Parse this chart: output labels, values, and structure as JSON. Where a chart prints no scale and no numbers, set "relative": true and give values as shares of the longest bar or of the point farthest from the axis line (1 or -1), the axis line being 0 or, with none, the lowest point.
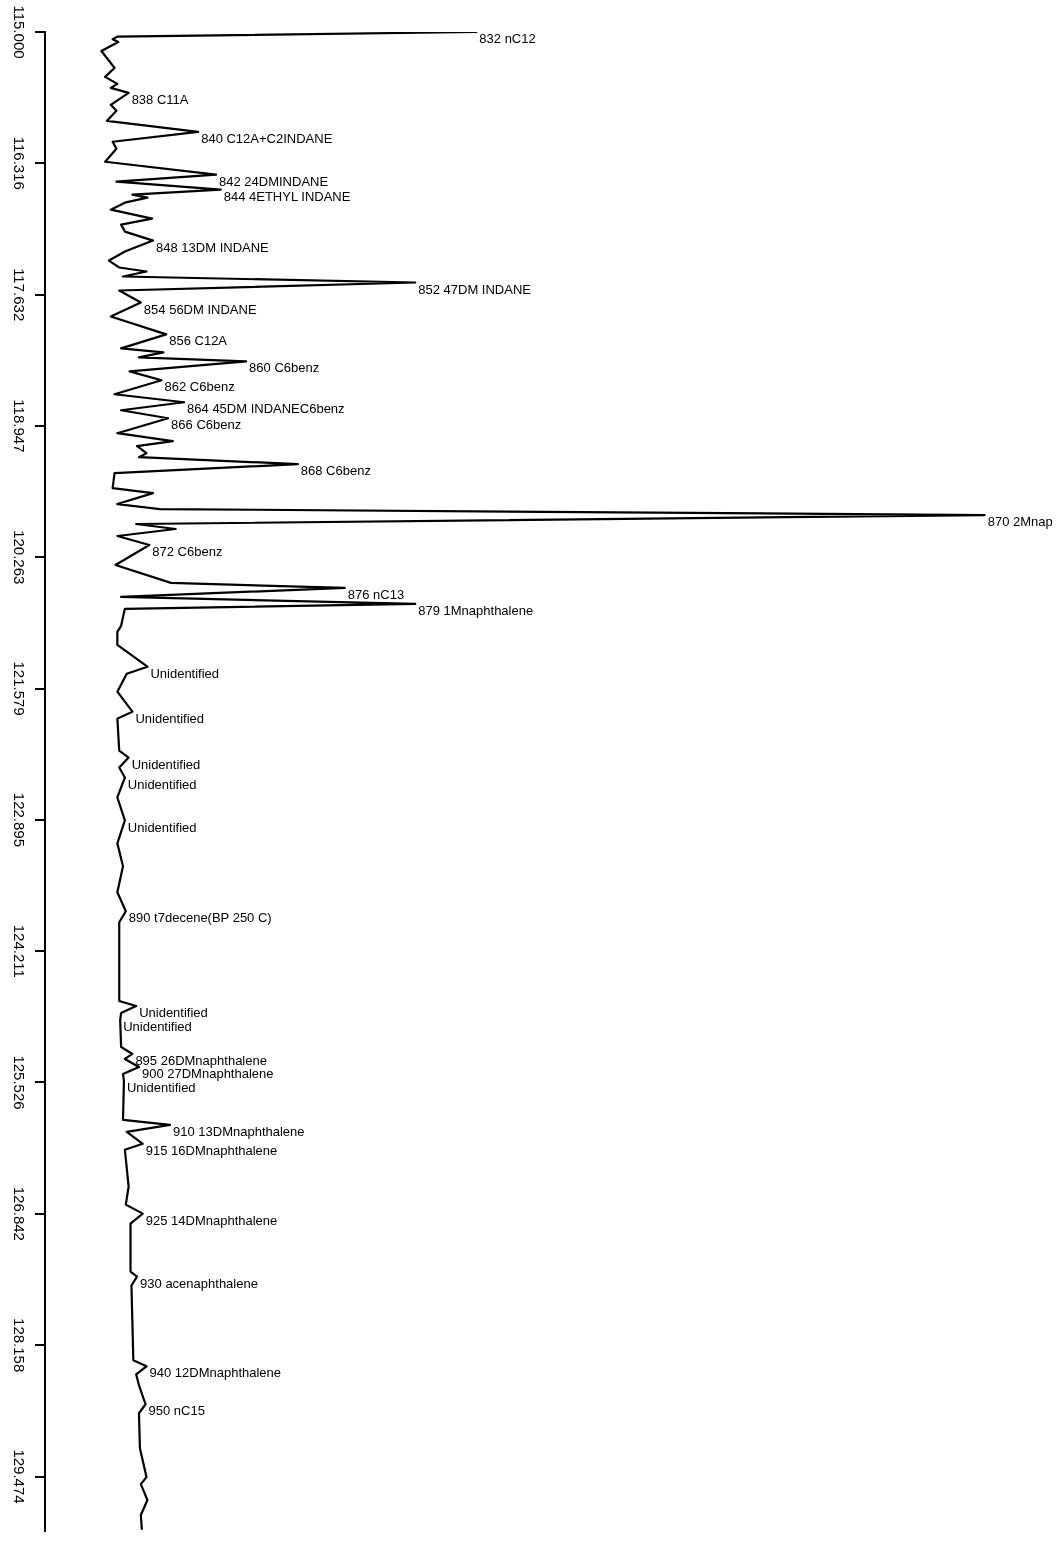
{
  "chart_data": {
    "type": "line",
    "orientation": "horizontal",
    "relative": true,
    "marker": "none",
    "color": "#000000",
    "x": [
      115.0,
      115.046,
      115.073,
      115.1,
      115.19,
      115.36,
      115.45,
      115.52,
      115.56,
      115.61,
      115.73,
      115.79,
      115.89,
      116.0,
      116.1,
      116.17,
      116.3,
      116.43,
      116.5,
      116.58,
      116.63,
      116.66,
      116.71,
      116.78,
      116.87,
      116.93,
      117.0,
      117.09,
      117.2,
      117.29,
      117.36,
      117.4,
      117.45,
      117.51,
      117.59,
      117.71,
      117.85,
      118.03,
      118.17,
      118.21,
      118.26,
      118.3,
      118.4,
      118.49,
      118.63,
      118.71,
      118.79,
      118.87,
      119.02,
      119.1,
      119.15,
      119.22,
      119.26,
      119.33,
      119.42,
      119.57,
      119.62,
      119.73,
      119.78,
      119.84,
      119.93,
      119.98,
      120.05,
      120.14,
      120.34,
      120.52,
      120.57,
      120.66,
      120.73,
      120.78,
      120.95,
      121.01,
      121.14,
      121.36,
      121.43,
      121.61,
      121.81,
      121.88,
      122.2,
      122.27,
      122.37,
      122.47,
      122.67,
      122.9,
      123.13,
      123.36,
      123.62,
      123.81,
      123.92,
      124.71,
      124.76,
      124.83,
      124.9,
      125.17,
      125.24,
      125.29,
      125.37,
      125.44,
      125.51,
      125.9,
      125.95,
      126.02,
      126.14,
      126.2,
      126.57,
      126.75,
      126.84,
      126.94,
      127.42,
      127.47,
      127.56,
      128.31,
      128.37,
      128.45,
      128.56,
      128.75,
      128.84,
      129.19,
      129.48,
      129.55,
      129.71,
      129.86,
      130.0
    ],
    "values": [
      0.459,
      0.077,
      0.072,
      0.078,
      0.06,
      0.074,
      0.064,
      0.077,
      0.07,
      0.089,
      0.07,
      0.076,
      0.066,
      0.163,
      0.072,
      0.076,
      0.064,
      0.182,
      0.076,
      0.187,
      0.093,
      0.109,
      0.085,
      0.07,
      0.114,
      0.081,
      0.085,
      0.115,
      0.085,
      0.068,
      0.079,
      0.108,
      0.083,
      0.394,
      0.079,
      0.102,
      0.07,
      0.129,
      0.081,
      0.126,
      0.1,
      0.214,
      0.09,
      0.124,
      0.074,
      0.148,
      0.081,
      0.131,
      0.077,
      0.136,
      0.098,
      0.108,
      0.1,
      0.269,
      0.074,
      0.072,
      0.115,
      0.077,
      0.122,
      1.0,
      0.097,
      0.139,
      0.077,
      0.111,
      0.075,
      0.134,
      0.319,
      0.081,
      0.394,
      0.085,
      0.081,
      0.077,
      0.077,
      0.109,
      0.087,
      0.077,
      0.093,
      0.077,
      0.079,
      0.089,
      0.079,
      0.085,
      0.077,
      0.085,
      0.077,
      0.083,
      0.077,
      0.086,
      0.079,
      0.079,
      0.097,
      0.081,
      0.08,
      0.081,
      0.093,
      0.085,
      0.1,
      0.083,
      0.084,
      0.083,
      0.133,
      0.087,
      0.104,
      0.085,
      0.089,
      0.086,
      0.104,
      0.091,
      0.091,
      0.098,
      0.092,
      0.094,
      0.108,
      0.097,
      0.1,
      0.107,
      0.1,
      0.101,
      0.108,
      0.102,
      0.109,
      0.102,
      0.103
    ],
    "ylim": [
      130.02,
      115.0
    ],
    "yticks": [
      {
        "value": 115.0,
        "label": "115.000"
      },
      {
        "value": 116.316,
        "label": "116.316"
      },
      {
        "value": 117.632,
        "label": "117.632"
      },
      {
        "value": 118.947,
        "label": "118.947"
      },
      {
        "value": 120.263,
        "label": "120.263"
      },
      {
        "value": 121.579,
        "label": "121.579"
      },
      {
        "value": 122.895,
        "label": "122.895"
      },
      {
        "value": 124.211,
        "label": "124.211"
      },
      {
        "value": 125.526,
        "label": "125.526"
      },
      {
        "value": 126.842,
        "label": "126.842"
      },
      {
        "value": 128.158,
        "label": "128.158"
      },
      {
        "value": 129.474,
        "label": "129.474"
      }
    ],
    "annotations": [
      {
        "text": "832 nC12",
        "y": 115.0,
        "x": 0.459
      },
      {
        "text": "838 C11A",
        "y": 115.61,
        "x": 0.089
      },
      {
        "text": "840 C12A+C2INDANE",
        "y": 116.0,
        "x": 0.163
      },
      {
        "text": "842 24DMINDANE",
        "y": 116.43,
        "x": 0.182
      },
      {
        "text": "844 4ETHYL INDANE",
        "y": 116.58,
        "x": 0.187
      },
      {
        "text": "848 13DM INDANE",
        "y": 117.09,
        "x": 0.115
      },
      {
        "text": "852 47DM INDANE",
        "y": 117.51,
        "x": 0.394
      },
      {
        "text": "854 56DM INDANE",
        "y": 117.71,
        "x": 0.102
      },
      {
        "text": "856 C12A",
        "y": 118.03,
        "x": 0.129
      },
      {
        "text": "860 C6benz",
        "y": 118.3,
        "x": 0.214
      },
      {
        "text": "862 C6benz",
        "y": 118.49,
        "x": 0.124
      },
      {
        "text": "864 45DM INDANEC6benz",
        "y": 118.71,
        "x": 0.148
      },
      {
        "text": "866 C6benz",
        "y": 118.87,
        "x": 0.131
      },
      {
        "text": "868 C6benz",
        "y": 119.33,
        "x": 0.269
      },
      {
        "text": "870 2Mnap",
        "y": 119.84,
        "x": 1.0
      },
      {
        "text": "872 C6benz",
        "y": 120.14,
        "x": 0.111
      },
      {
        "text": "876 nC13",
        "y": 120.57,
        "x": 0.319
      },
      {
        "text": "879 1Mnaphthalene",
        "y": 120.73,
        "x": 0.394
      },
      {
        "text": "Unidentified",
        "y": 121.36,
        "x": 0.109
      },
      {
        "text": "Unidentified",
        "y": 121.81,
        "x": 0.093
      },
      {
        "text": "Unidentified",
        "y": 122.27,
        "x": 0.089
      },
      {
        "text": "Unidentified",
        "y": 122.47,
        "x": 0.085
      },
      {
        "text": "Unidentified",
        "y": 122.9,
        "x": 0.085
      },
      {
        "text": "890 t7decene(BP 250 C)",
        "y": 123.81,
        "x": 0.086
      },
      {
        "text": "Unidentified",
        "y": 124.76,
        "x": 0.097
      },
      {
        "text": "Unidentified",
        "y": 124.9,
        "x": 0.08
      },
      {
        "text": "895 26DMnaphthalene",
        "y": 125.24,
        "x": 0.093
      },
      {
        "text": "900 27DMnaphthalene",
        "y": 125.37,
        "x": 0.1
      },
      {
        "text": "Unidentified",
        "y": 125.51,
        "x": 0.084
      },
      {
        "text": "910 13DMnaphthalene",
        "y": 125.95,
        "x": 0.133
      },
      {
        "text": "915 16DMnaphthalene",
        "y": 126.14,
        "x": 0.104
      },
      {
        "text": "925 14DMnaphthalene",
        "y": 126.84,
        "x": 0.104
      },
      {
        "text": "930 acenaphthalene",
        "y": 127.47,
        "x": 0.098
      },
      {
        "text": "940 12DMnaphthalene",
        "y": 128.37,
        "x": 0.108
      },
      {
        "text": "950 nC15",
        "y": 128.75,
        "x": 0.107
      }
    ]
  }
}
